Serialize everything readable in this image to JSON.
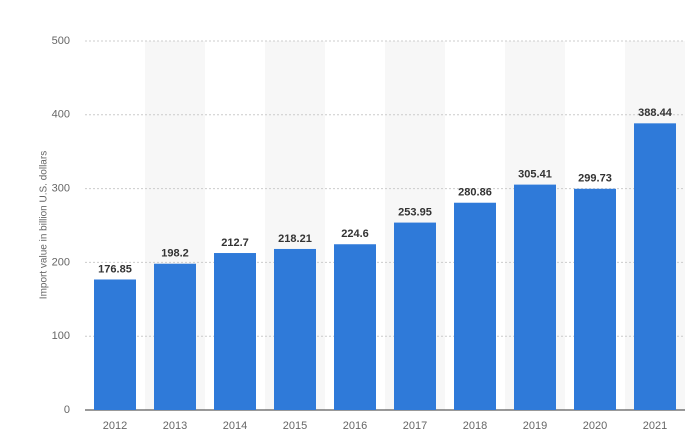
{
  "chart_data": {
    "type": "bar",
    "y_label": "Import value in billion U.S. dollars",
    "categories": [
      "2012",
      "2013",
      "2014",
      "2015",
      "2016",
      "2017",
      "2018",
      "2019",
      "2020",
      "2021"
    ],
    "values": [
      176.85,
      198.2,
      212.7,
      218.21,
      224.6,
      253.95,
      280.86,
      305.41,
      299.73,
      388.44
    ],
    "color": "#2f7ad9",
    "ylim": [
      0,
      500
    ],
    "yticks": [
      0,
      100,
      200,
      300,
      400,
      500
    ],
    "grid": true
  }
}
